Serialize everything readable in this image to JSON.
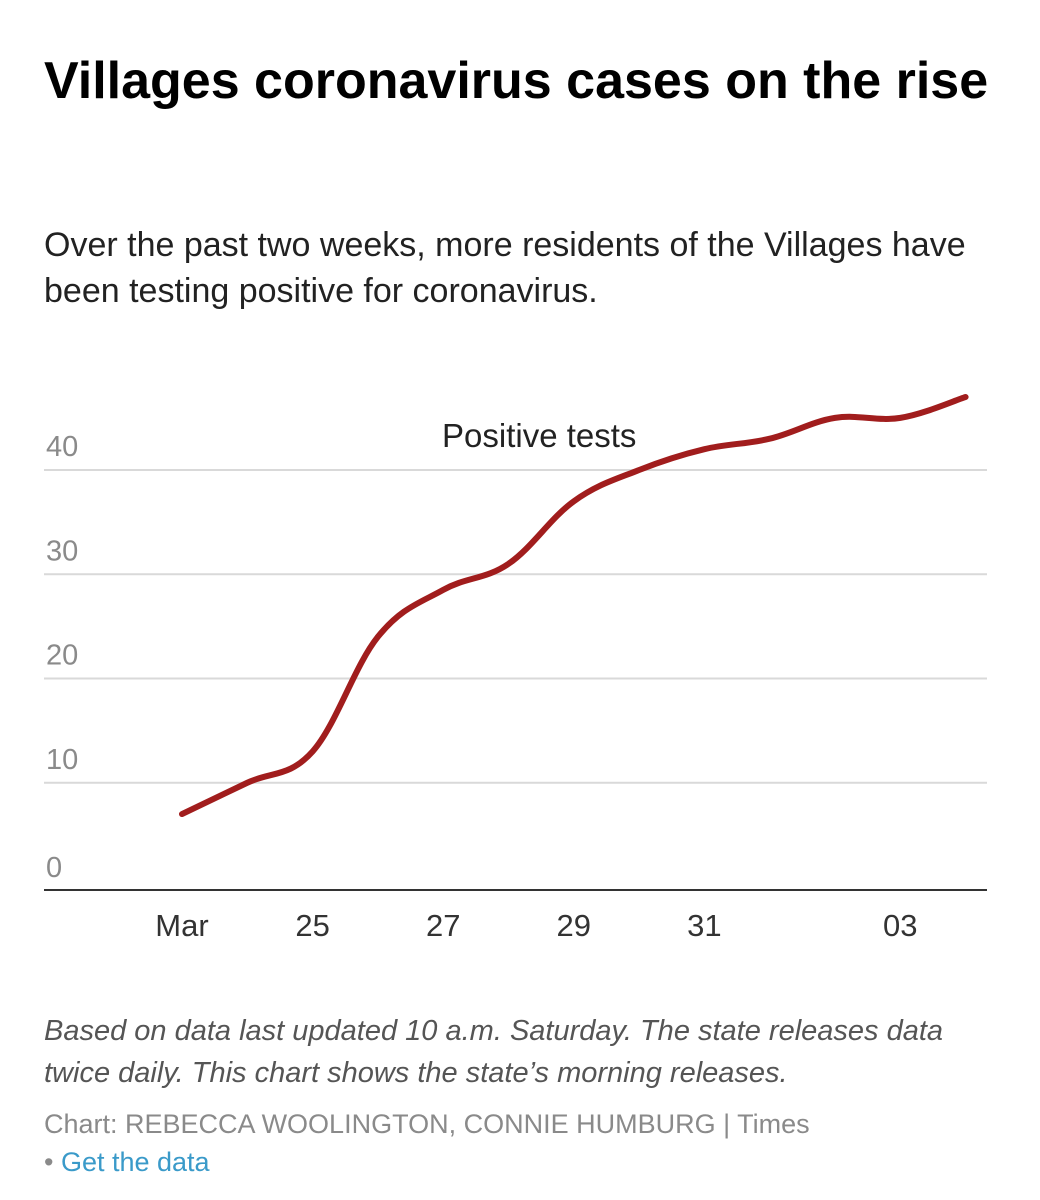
{
  "header": {
    "title": "Villages coronavirus cases on the rise",
    "subtitle": "Over the past two weeks, more residents of the Villages have been testing positive for coronavirus."
  },
  "chart_data": {
    "type": "line",
    "series": [
      {
        "name": "Positive tests",
        "color": "#a11d1d",
        "x": [
          "2020-03-23",
          "2020-03-24",
          "2020-03-25",
          "2020-03-26",
          "2020-03-27",
          "2020-03-28",
          "2020-03-29",
          "2020-03-30",
          "2020-03-31",
          "2020-04-01",
          "2020-04-02",
          "2020-04-03",
          "2020-04-04"
        ],
        "y": [
          7,
          10,
          13,
          24,
          28.5,
          31,
          37,
          40,
          42,
          43,
          45,
          45,
          47
        ]
      }
    ],
    "xticks": [
      {
        "date": "2020-03-23",
        "label": "Mar"
      },
      {
        "date": "2020-03-25",
        "label": "25"
      },
      {
        "date": "2020-03-27",
        "label": "27"
      },
      {
        "date": "2020-03-29",
        "label": "29"
      },
      {
        "date": "2020-03-31",
        "label": "31"
      },
      {
        "date": "2020-04-03",
        "label": "03"
      }
    ],
    "yticks": [
      0,
      10,
      20,
      30,
      40
    ],
    "ylim": [
      0,
      47
    ],
    "grid": true,
    "series_label_placement": "top-center"
  },
  "notes": "Based on data last updated 10 a.m. Saturday. The state releases data twice daily. This chart shows the state’s morning releases.",
  "credit": "Chart: REBECCA WOOLINGTON, CONNIE HUMBURG | Times",
  "links": {
    "bullet": "•",
    "get_data": "Get the data"
  }
}
